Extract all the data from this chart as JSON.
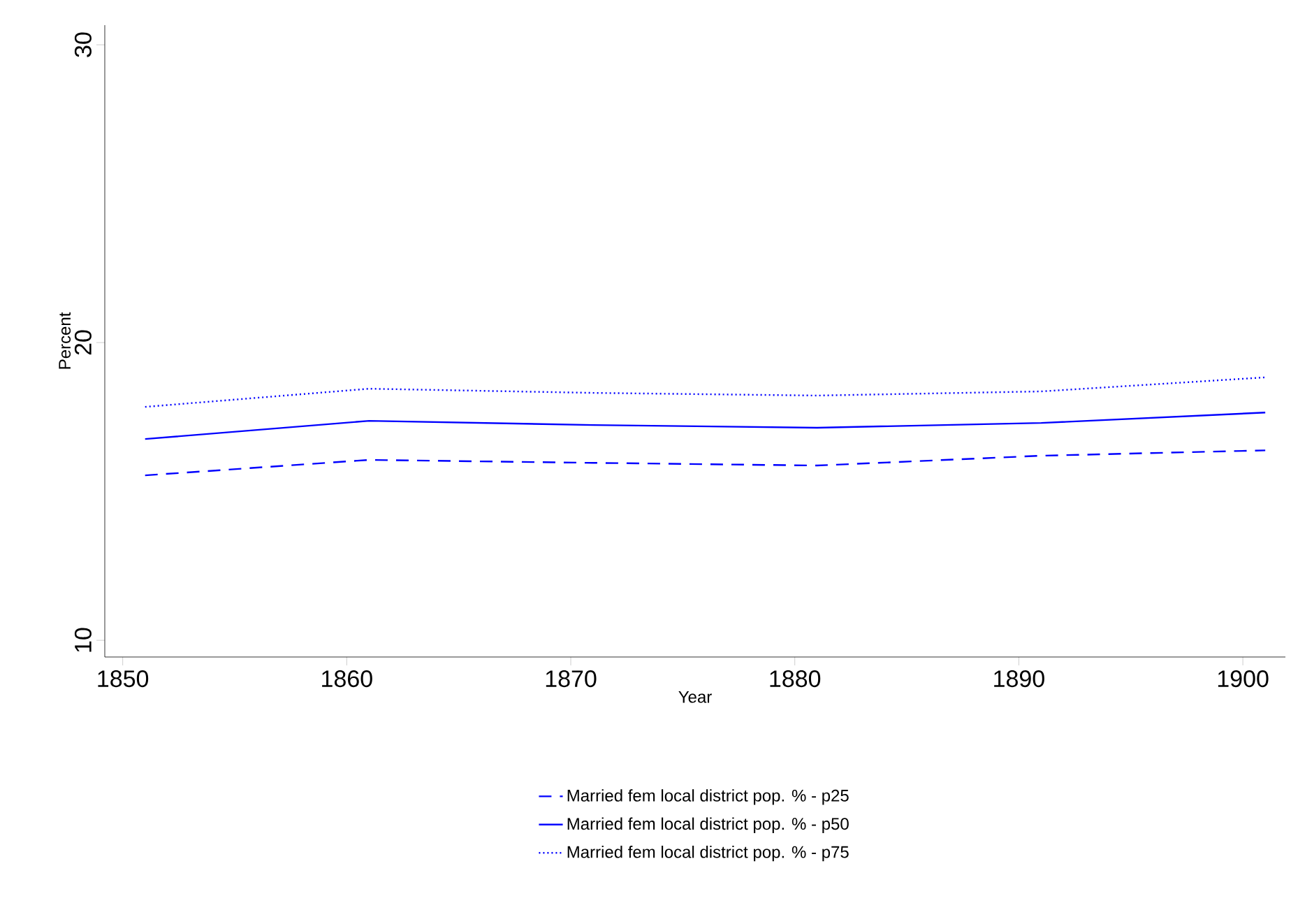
{
  "chart_data": {
    "type": "line",
    "xlabel": "Year",
    "ylabel": "Percent",
    "x": [
      1851,
      1861,
      1871,
      1881,
      1891,
      1901
    ],
    "xlim": [
      1849.2,
      1901.9
    ],
    "ylim": [
      9.44,
      30.66
    ],
    "xticks": [
      1850,
      1860,
      1870,
      1880,
      1890,
      1900
    ],
    "yticks": [
      10,
      20,
      30
    ],
    "grid": false,
    "legend": "bottom",
    "marker": "none",
    "series": [
      {
        "name": "Married fem local district pop. % - p25",
        "color": "#0000ff",
        "line_style": "dashed",
        "values": [
          15.54,
          16.06,
          15.96,
          15.87,
          16.2,
          16.38
        ]
      },
      {
        "name": "Married fem local district pop. % - p50",
        "color": "#0000ff",
        "line_style": "solid",
        "values": [
          16.76,
          17.37,
          17.23,
          17.14,
          17.3,
          17.65
        ]
      },
      {
        "name": "Married fem local district pop. % - p75",
        "color": "#0000ff",
        "line_style": "dotted",
        "values": [
          17.84,
          18.45,
          18.31,
          18.22,
          18.36,
          18.83
        ]
      }
    ]
  }
}
